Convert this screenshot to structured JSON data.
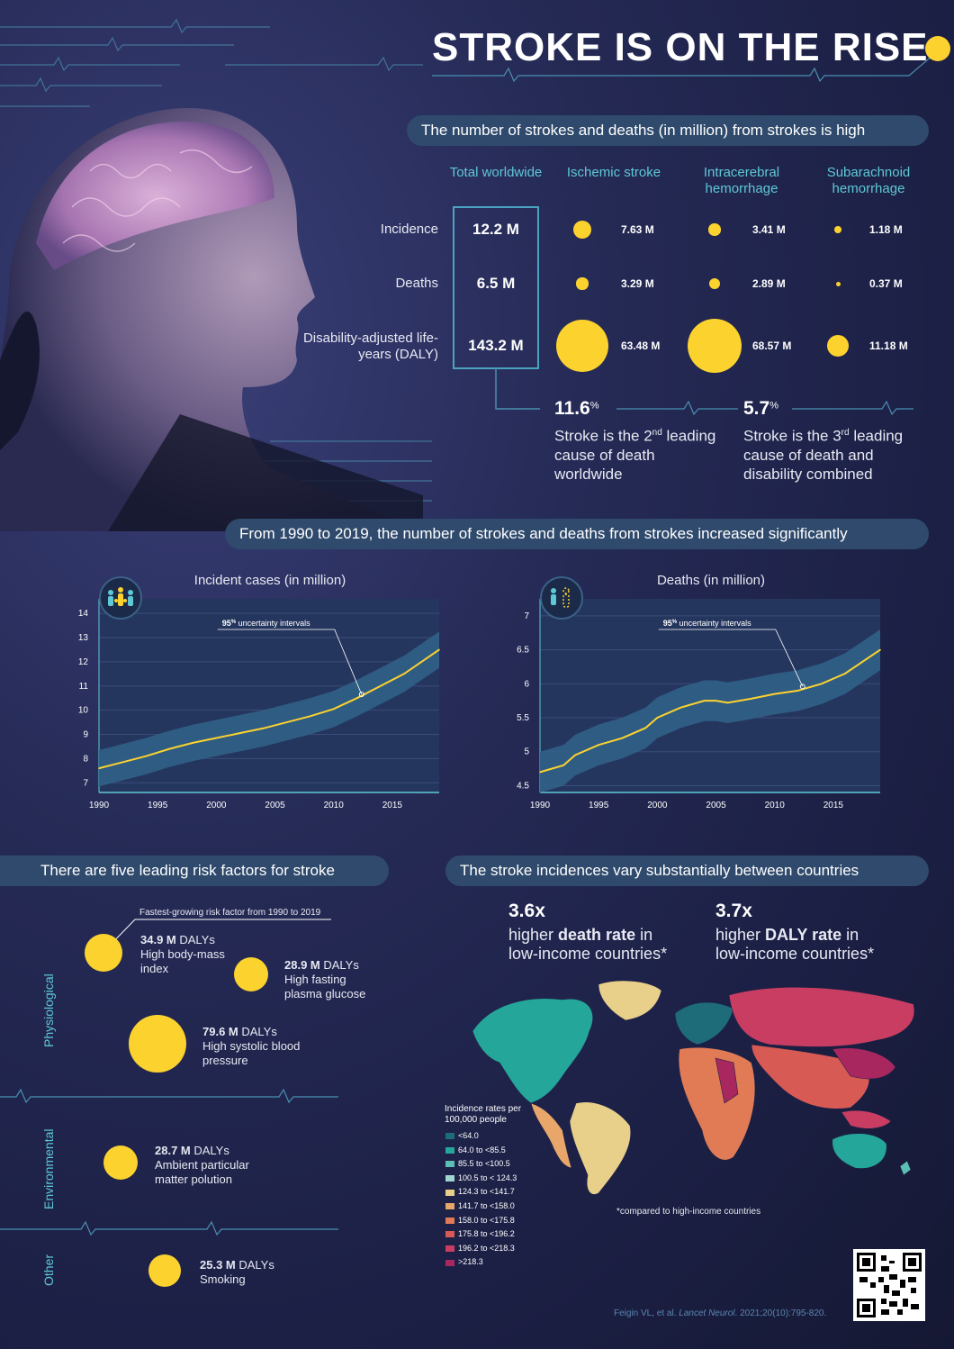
{
  "title": "STROKE IS ON THE RISE",
  "section1": {
    "heading": "The number of strokes and deaths (in million) from strokes is high",
    "columns": [
      "Total worldwide",
      "Ischemic stroke",
      "Intracerebral hemorrhage",
      "Subarachnoid hemorrhage"
    ],
    "rows": [
      {
        "label": "Incidence",
        "total": "12.2 M",
        "values": [
          "7.63 M",
          "3.41 M",
          "1.18 M"
        ],
        "numeric": [
          7.63,
          3.41,
          1.18
        ]
      },
      {
        "label": "Deaths",
        "total": "6.5 M",
        "values": [
          "3.29 M",
          "2.89 M",
          "0.37 M"
        ],
        "numeric": [
          3.29,
          2.89,
          0.37
        ]
      },
      {
        "label": "Disability-adjusted life-years (DALY)",
        "total": "143.2 M",
        "values": [
          "63.48 M",
          "68.57 M",
          "11.18 M"
        ],
        "numeric": [
          63.48,
          68.57,
          11.18
        ]
      }
    ],
    "stats": [
      {
        "value": "11.6",
        "unit": "%",
        "text_a": "Stroke is the 2",
        "sup": "nd",
        "text_b": "leading cause of death worldwide"
      },
      {
        "value": "5.7",
        "unit": "%",
        "text_a": "Stroke is the 3",
        "sup": "rd",
        "text_b": "leading cause of death and disability combined"
      }
    ]
  },
  "section2": {
    "heading": "From 1990 to 2019, the number of strokes and deaths from strokes increased significantly",
    "annotation_prefix": "95",
    "annotation_sup": "%",
    "annotation_text": " uncertainty intervals"
  },
  "chart_data": [
    {
      "type": "line",
      "title": "Incident cases (in million)",
      "x": [
        1990,
        1992,
        1994,
        1996,
        1998,
        2000,
        2002,
        2004,
        2006,
        2008,
        2010,
        2012,
        2014,
        2016,
        2019
      ],
      "y": [
        7.6,
        7.85,
        8.1,
        8.4,
        8.65,
        8.85,
        9.05,
        9.25,
        9.5,
        9.75,
        10.05,
        10.5,
        11.0,
        11.5,
        12.5
      ],
      "band": 0.75,
      "xticks": [
        1990,
        1995,
        2000,
        2005,
        2010,
        2015
      ],
      "yticks": [
        7,
        8,
        9,
        10,
        11,
        12,
        13,
        14
      ],
      "xlim": [
        1990,
        2019
      ],
      "ylim": [
        6.6,
        14.6
      ]
    },
    {
      "type": "line",
      "title": "Deaths (in million)",
      "x": [
        1990,
        1992,
        1993,
        1995,
        1997,
        1999,
        2000,
        2002,
        2004,
        2005,
        2006,
        2008,
        2010,
        2012,
        2014,
        2016,
        2019
      ],
      "y": [
        4.7,
        4.8,
        4.95,
        5.1,
        5.2,
        5.35,
        5.5,
        5.65,
        5.75,
        5.75,
        5.72,
        5.78,
        5.85,
        5.9,
        6.0,
        6.15,
        6.5
      ],
      "band": 0.3,
      "xticks": [
        1990,
        1995,
        2000,
        2005,
        2010,
        2015
      ],
      "yticks": [
        4.5,
        5,
        5.5,
        6,
        6.5,
        7
      ],
      "xlim": [
        1990,
        2019
      ],
      "ylim": [
        4.4,
        7.25
      ]
    }
  ],
  "section3": {
    "heading": "There are five leading risk factors for stroke",
    "callout": "Fastest-growing risk factor from 1990 to 2019",
    "groups": [
      "Physiological",
      "Environmental",
      "Other"
    ],
    "factors": [
      {
        "dalys": "34.9 M",
        "unit": " DALYs",
        "name": "High body-mass index",
        "value": 34.9
      },
      {
        "dalys": "28.9 M",
        "unit": " DALYs",
        "name": "High fasting plasma glucose",
        "value": 28.9
      },
      {
        "dalys": "79.6 M",
        "unit": " DALYs",
        "name": "High systolic blood pressure",
        "value": 79.6
      },
      {
        "dalys": "28.7 M",
        "unit": " DALYs",
        "name": "Ambient particular matter polution",
        "value": 28.7
      },
      {
        "dalys": "25.3 M",
        "unit": " DALYs",
        "name": "Smoking",
        "value": 25.3
      }
    ]
  },
  "section4": {
    "heading": "The stroke incidences vary substantially between countries",
    "stat1": {
      "value": "3.6x",
      "a": "higher ",
      "b": "death rate",
      "c": " in",
      "d": "low-income countries*"
    },
    "stat2": {
      "value": "3.7x",
      "a": "higher ",
      "b": "DALY rate",
      "c": " in",
      "d": "low-income countries*"
    },
    "legend_title": "Incidence rates per 100,000 people",
    "legend": [
      {
        "label": "<64.0",
        "color": "#1e6b7a"
      },
      {
        "label": "64.0 to <85.5",
        "color": "#25a69a"
      },
      {
        "label": "85.5 to <100.5",
        "color": "#5cbfb3"
      },
      {
        "label": "100.5 to < 124.3",
        "color": "#9fd6cf"
      },
      {
        "label": "124.3 to <141.7",
        "color": "#e8d08a"
      },
      {
        "label": "141.7 to <158.0",
        "color": "#e8a66a"
      },
      {
        "label": "158.0 to <175.8",
        "color": "#e07b55"
      },
      {
        "label": "175.8 to <196.2",
        "color": "#d85a55"
      },
      {
        "label": "196.2 to <218.3",
        "color": "#c93d62"
      },
      {
        "label": ">218.3",
        "color": "#a8275f"
      }
    ],
    "footnote": "*compared to high-income countries"
  },
  "citation_a": "Feigin VL, et al. ",
  "citation_b": "Lancet Neurol",
  "citation_c": ". 2021;20(10):795-820.",
  "colors": {
    "accent": "#fcd22f",
    "teal": "#5ec8d6",
    "band": "#2f5f85",
    "background": "#1d2146"
  }
}
